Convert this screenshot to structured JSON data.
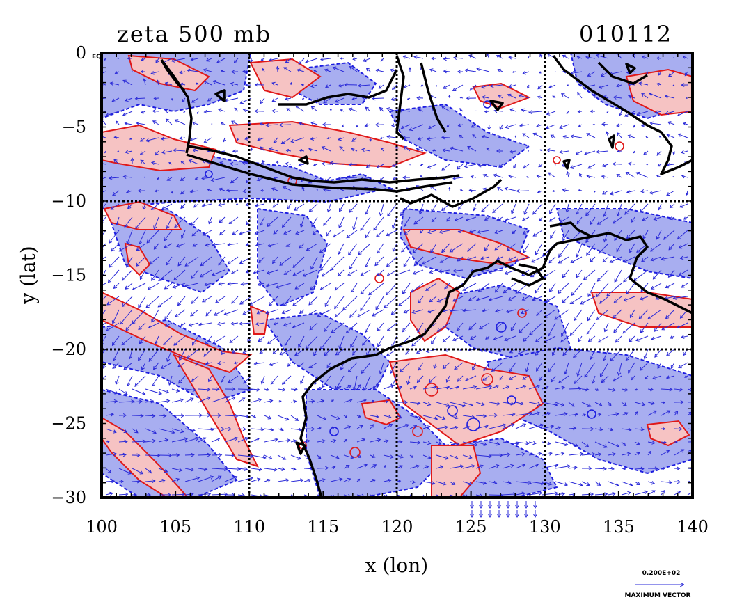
{
  "figure": {
    "title_left": "zeta 500 mb",
    "title_right": "010112",
    "xlabel": "x (lon)",
    "ylabel": "y (lat)",
    "corner_label": "EQ",
    "x_ticks": [
      "100",
      "105",
      "110",
      "115",
      "120",
      "125",
      "130",
      "135",
      "140"
    ],
    "y_ticks": [
      "0",
      "−5",
      "−10",
      "−15",
      "−20",
      "−25",
      "−30"
    ],
    "legend": {
      "value": "0.200E+02",
      "label": "MAXIMUM VECTOR"
    }
  },
  "map": {
    "lon_range": [
      100,
      140
    ],
    "lat_range": [
      -30,
      0
    ],
    "grid_lons": [
      110,
      120,
      130
    ],
    "grid_lats": [
      -10,
      -20
    ],
    "colors": {
      "positive_fill": "#f6c3c3",
      "positive_line": "#e01818",
      "negative_fill": "#a8aef0",
      "negative_line": "#1d1de0",
      "vector": "#2a2ad8",
      "coast": "#000000"
    }
  }
}
